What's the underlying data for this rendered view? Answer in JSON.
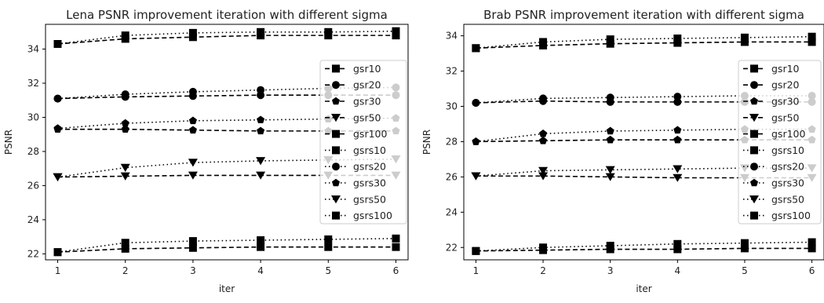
{
  "chart_data": [
    {
      "type": "line",
      "title": "Lena PSNR improvement iteration with different sigma",
      "xlabel": "iter",
      "ylabel": "PSNR",
      "x": [
        1,
        2,
        3,
        4,
        5,
        6
      ],
      "xticks": [
        "1",
        "2",
        "3",
        "4",
        "5",
        "6"
      ],
      "yticks": [
        "22",
        "24",
        "26",
        "28",
        "30",
        "32",
        "34"
      ],
      "xlim": [
        0.82,
        6.18
      ],
      "ylim": [
        21.65,
        35.45
      ],
      "legend_position": "center-right",
      "series": [
        {
          "name": "gsr10",
          "values": [
            34.3,
            34.6,
            34.7,
            34.8,
            34.8,
            34.8
          ],
          "marker": "square",
          "linestyle": "dashed"
        },
        {
          "name": "gsr20",
          "values": [
            31.1,
            31.2,
            31.25,
            31.3,
            31.3,
            31.3
          ],
          "marker": "circle",
          "linestyle": "dashed"
        },
        {
          "name": "gsr30",
          "values": [
            29.3,
            29.3,
            29.25,
            29.2,
            29.2,
            29.2
          ],
          "marker": "pentagon",
          "linestyle": "dashed"
        },
        {
          "name": "gsr50",
          "values": [
            26.5,
            26.55,
            26.6,
            26.6,
            26.6,
            26.6
          ],
          "marker": "triangle-down",
          "linestyle": "dashed"
        },
        {
          "name": "gsr100",
          "values": [
            22.1,
            22.3,
            22.35,
            22.4,
            22.4,
            22.4
          ],
          "marker": "square",
          "linestyle": "dashed"
        },
        {
          "name": "gsrs10",
          "values": [
            34.3,
            34.8,
            34.95,
            35.0,
            35.0,
            35.05
          ],
          "marker": "square",
          "linestyle": "dotted"
        },
        {
          "name": "gsrs20",
          "values": [
            31.1,
            31.35,
            31.5,
            31.6,
            31.7,
            31.75
          ],
          "marker": "circle",
          "linestyle": "dotted"
        },
        {
          "name": "gsrs30",
          "values": [
            29.35,
            29.65,
            29.8,
            29.85,
            29.9,
            29.95
          ],
          "marker": "pentagon",
          "linestyle": "dotted"
        },
        {
          "name": "gsrs50",
          "values": [
            26.5,
            27.05,
            27.35,
            27.45,
            27.5,
            27.55
          ],
          "marker": "triangle-down",
          "linestyle": "dotted"
        },
        {
          "name": "gsrs100",
          "values": [
            22.1,
            22.65,
            22.75,
            22.8,
            22.85,
            22.9
          ],
          "marker": "square",
          "linestyle": "dotted"
        }
      ]
    },
    {
      "type": "line",
      "title": "Brab PSNR improvement iteration with different sigma",
      "xlabel": "iter",
      "ylabel": "PSNR",
      "x": [
        1,
        2,
        3,
        4,
        5,
        6
      ],
      "xticks": [
        "1",
        "2",
        "3",
        "4",
        "5",
        "6"
      ],
      "yticks": [
        "22",
        "24",
        "26",
        "28",
        "30",
        "32",
        "34"
      ],
      "xlim": [
        0.82,
        6.18
      ],
      "ylim": [
        21.3,
        34.65
      ],
      "legend_position": "center-right",
      "series": [
        {
          "name": "gsr10",
          "values": [
            33.3,
            33.45,
            33.55,
            33.6,
            33.65,
            33.65
          ],
          "marker": "square",
          "linestyle": "dashed"
        },
        {
          "name": "gsr20",
          "values": [
            30.2,
            30.3,
            30.25,
            30.25,
            30.25,
            30.25
          ],
          "marker": "circle",
          "linestyle": "dashed"
        },
        {
          "name": "gsr30",
          "values": [
            28.0,
            28.05,
            28.1,
            28.1,
            28.1,
            28.1
          ],
          "marker": "pentagon",
          "linestyle": "dashed"
        },
        {
          "name": "gsr50",
          "values": [
            26.05,
            26.05,
            26.0,
            25.95,
            25.95,
            25.95
          ],
          "marker": "triangle-down",
          "linestyle": "dashed"
        },
        {
          "name": "gsr100",
          "values": [
            21.8,
            21.85,
            21.9,
            21.9,
            21.95,
            21.95
          ],
          "marker": "square",
          "linestyle": "dashed"
        },
        {
          "name": "gsrs10",
          "values": [
            33.3,
            33.65,
            33.8,
            33.85,
            33.9,
            33.95
          ],
          "marker": "square",
          "linestyle": "dotted"
        },
        {
          "name": "gsrs20",
          "values": [
            30.2,
            30.45,
            30.5,
            30.55,
            30.6,
            30.6
          ],
          "marker": "circle",
          "linestyle": "dotted"
        },
        {
          "name": "gsrs30",
          "values": [
            28.0,
            28.45,
            28.6,
            28.65,
            28.7,
            28.7
          ],
          "marker": "pentagon",
          "linestyle": "dotted"
        },
        {
          "name": "gsrs50",
          "values": [
            26.05,
            26.35,
            26.4,
            26.45,
            26.5,
            26.5
          ],
          "marker": "triangle-down",
          "linestyle": "dotted"
        },
        {
          "name": "gsrs100",
          "values": [
            21.8,
            22.0,
            22.1,
            22.2,
            22.25,
            22.3
          ],
          "marker": "square",
          "linestyle": "dotted"
        }
      ]
    }
  ]
}
